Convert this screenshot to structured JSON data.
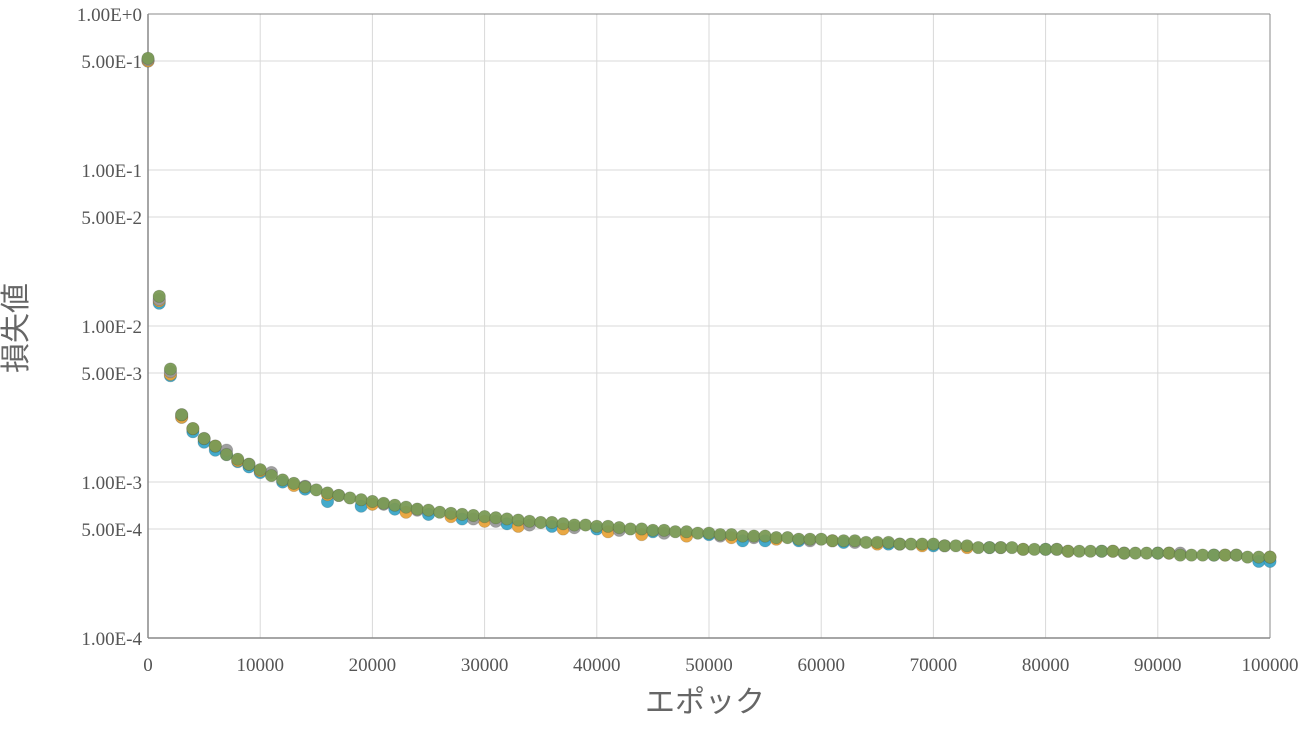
{
  "chart_data": {
    "type": "scatter",
    "title": "",
    "xlabel": "エポック",
    "ylabel": "損失値",
    "xlim": [
      0,
      100000
    ],
    "ylim": [
      0.0001,
      1
    ],
    "yscale": "log",
    "grid": true,
    "legend": "none",
    "x_ticks": [
      "0",
      "10000",
      "20000",
      "30000",
      "40000",
      "50000",
      "60000",
      "70000",
      "80000",
      "90000",
      "100000"
    ],
    "y_ticks": [
      {
        "value": 1,
        "label": "1.00E+0"
      },
      {
        "value": 0.5,
        "label": "5.00E-1"
      },
      {
        "value": 0.1,
        "label": "1.00E-1"
      },
      {
        "value": 0.05,
        "label": "5.00E-2"
      },
      {
        "value": 0.01,
        "label": "1.00E-2"
      },
      {
        "value": 0.005,
        "label": "5.00E-3"
      },
      {
        "value": 0.001,
        "label": "1.00E-3"
      },
      {
        "value": 0.0005,
        "label": "5.00E-4"
      },
      {
        "value": 0.0001,
        "label": "1.00E-4"
      }
    ],
    "colors": {
      "series_1": "#3aa5c8",
      "series_2": "#e8a33a",
      "series_3": "#9a9a9a",
      "series_4": "#7a9a55",
      "grid": "#d9d9d9",
      "axis": "#888888"
    },
    "series": [
      {
        "color": "#3aa5c8",
        "x": [
          0,
          1000,
          2000,
          3000,
          4000,
          5000,
          6000,
          7000,
          8000,
          9000,
          10000,
          12000,
          14000,
          16000,
          19000,
          22000,
          25000,
          28000,
          32000,
          36000,
          40000,
          45000,
          50000,
          53000,
          55000,
          58000,
          62000,
          66000,
          70000,
          75000,
          80000,
          85000,
          90000,
          95000,
          99000,
          100000
        ],
        "y": [
          0.5,
          0.014,
          0.0048,
          0.0026,
          0.0021,
          0.0018,
          0.0016,
          0.0015,
          0.00135,
          0.00125,
          0.00115,
          0.001,
          0.0009,
          0.00075,
          0.0007,
          0.00067,
          0.00062,
          0.00058,
          0.00054,
          0.00052,
          0.0005,
          0.00048,
          0.00046,
          0.00042,
          0.00042,
          0.00042,
          0.00041,
          0.0004,
          0.00039,
          0.00038,
          0.00037,
          0.00036,
          0.00035,
          0.00034,
          0.00031,
          0.00031
        ]
      },
      {
        "color": "#e8a33a",
        "x": [
          0,
          1000,
          2000,
          3000,
          4000,
          6000,
          8000,
          10000,
          13000,
          16000,
          20000,
          23000,
          27000,
          30000,
          33000,
          37000,
          41000,
          44000,
          48000,
          52000,
          56000,
          61000,
          65000,
          69000,
          73000,
          78000,
          82000,
          86000,
          91000,
          96000,
          100000
        ],
        "y": [
          0.5,
          0.0145,
          0.0049,
          0.0026,
          0.0022,
          0.0017,
          0.00137,
          0.00118,
          0.00095,
          0.00083,
          0.00072,
          0.00064,
          0.0006,
          0.00056,
          0.00052,
          0.0005,
          0.00048,
          0.00046,
          0.00045,
          0.00044,
          0.00043,
          0.00042,
          0.0004,
          0.00039,
          0.00038,
          0.00037,
          0.00036,
          0.00036,
          0.00035,
          0.00034,
          0.00033
        ]
      },
      {
        "color": "#9a9a9a",
        "x": [
          0,
          1000,
          2000,
          3000,
          5000,
          7000,
          9000,
          11000,
          14000,
          17000,
          21000,
          24000,
          29000,
          31000,
          34000,
          38000,
          42000,
          46000,
          51000,
          54000,
          59000,
          63000,
          67000,
          71000,
          76000,
          81000,
          87000,
          92000,
          97000
        ],
        "y": [
          0.51,
          0.0148,
          0.0051,
          0.0027,
          0.0019,
          0.0016,
          0.0013,
          0.00115,
          0.00094,
          0.00082,
          0.00072,
          0.00066,
          0.00058,
          0.00056,
          0.00053,
          0.00051,
          0.00049,
          0.00047,
          0.00045,
          0.00044,
          0.00042,
          0.00041,
          0.0004,
          0.00039,
          0.00038,
          0.00037,
          0.00035,
          0.00035,
          0.00034
        ]
      },
      {
        "color": "#7a9a55",
        "x": [
          0,
          1000,
          2000,
          3000,
          4000,
          5000,
          6000,
          7000,
          8000,
          9000,
          10000,
          11000,
          12000,
          13000,
          14000,
          15000,
          16000,
          17000,
          18000,
          19000,
          20000,
          21000,
          22000,
          23000,
          24000,
          25000,
          26000,
          27000,
          28000,
          29000,
          30000,
          31000,
          32000,
          33000,
          34000,
          35000,
          36000,
          37000,
          38000,
          39000,
          40000,
          41000,
          42000,
          43000,
          44000,
          45000,
          46000,
          47000,
          48000,
          49000,
          50000,
          51000,
          52000,
          53000,
          54000,
          55000,
          56000,
          57000,
          58000,
          59000,
          60000,
          61000,
          62000,
          63000,
          64000,
          65000,
          66000,
          67000,
          68000,
          69000,
          70000,
          71000,
          72000,
          73000,
          74000,
          75000,
          76000,
          77000,
          78000,
          79000,
          80000,
          81000,
          82000,
          83000,
          84000,
          85000,
          86000,
          87000,
          88000,
          89000,
          90000,
          91000,
          92000,
          93000,
          94000,
          95000,
          96000,
          97000,
          98000,
          99000,
          100000
        ],
        "y": [
          0.52,
          0.0155,
          0.0053,
          0.0027,
          0.0022,
          0.0019,
          0.0017,
          0.0015,
          0.0014,
          0.0013,
          0.0012,
          0.0011,
          0.00103,
          0.00098,
          0.00093,
          0.00089,
          0.00085,
          0.00082,
          0.00079,
          0.00077,
          0.00075,
          0.00073,
          0.00071,
          0.00069,
          0.00067,
          0.00066,
          0.00064,
          0.00063,
          0.00062,
          0.00061,
          0.0006,
          0.00059,
          0.00058,
          0.00057,
          0.00056,
          0.00055,
          0.00055,
          0.00054,
          0.00053,
          0.00053,
          0.00052,
          0.00052,
          0.00051,
          0.0005,
          0.0005,
          0.00049,
          0.00049,
          0.00048,
          0.00048,
          0.00047,
          0.00047,
          0.00046,
          0.00046,
          0.00045,
          0.00045,
          0.00045,
          0.00044,
          0.00044,
          0.00043,
          0.00043,
          0.00043,
          0.00042,
          0.00042,
          0.00042,
          0.00041,
          0.00041,
          0.00041,
          0.0004,
          0.0004,
          0.0004,
          0.0004,
          0.00039,
          0.00039,
          0.00039,
          0.00038,
          0.00038,
          0.00038,
          0.00038,
          0.00037,
          0.00037,
          0.00037,
          0.00037,
          0.00036,
          0.00036,
          0.00036,
          0.00036,
          0.00036,
          0.00035,
          0.00035,
          0.00035,
          0.00035,
          0.00035,
          0.00034,
          0.00034,
          0.00034,
          0.00034,
          0.00034,
          0.00034,
          0.00033,
          0.00033,
          0.00033
        ]
      }
    ]
  }
}
